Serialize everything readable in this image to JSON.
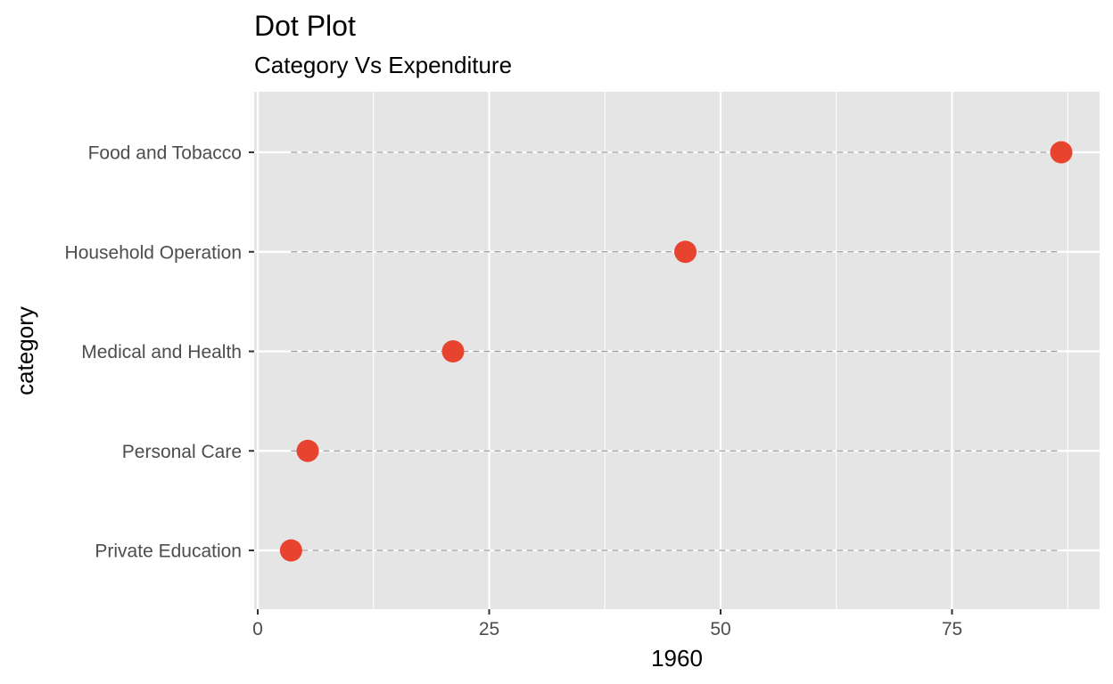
{
  "chart_data": {
    "type": "scatter",
    "title": "Dot Plot",
    "subtitle": "Category Vs Expenditure",
    "xlabel": "1960",
    "ylabel": "category",
    "xlim": [
      0,
      90
    ],
    "x_ticks": [
      0,
      25,
      50,
      75
    ],
    "x_tick_labels": [
      "0",
      "25",
      "50",
      "75"
    ],
    "grid": true,
    "categories": [
      "Food and Tobacco",
      "Household Operation",
      "Medical and Health",
      "Personal Care",
      "Private Education"
    ],
    "values": [
      86.8,
      46.2,
      21.1,
      5.4,
      3.6
    ],
    "segment_range": [
      3.6,
      86.8
    ],
    "colors": {
      "panel": "#e5e5e5",
      "grid": "#ffffff",
      "point": "#e8432e",
      "segment": "#9a9a9a",
      "tick": "#333333"
    }
  }
}
